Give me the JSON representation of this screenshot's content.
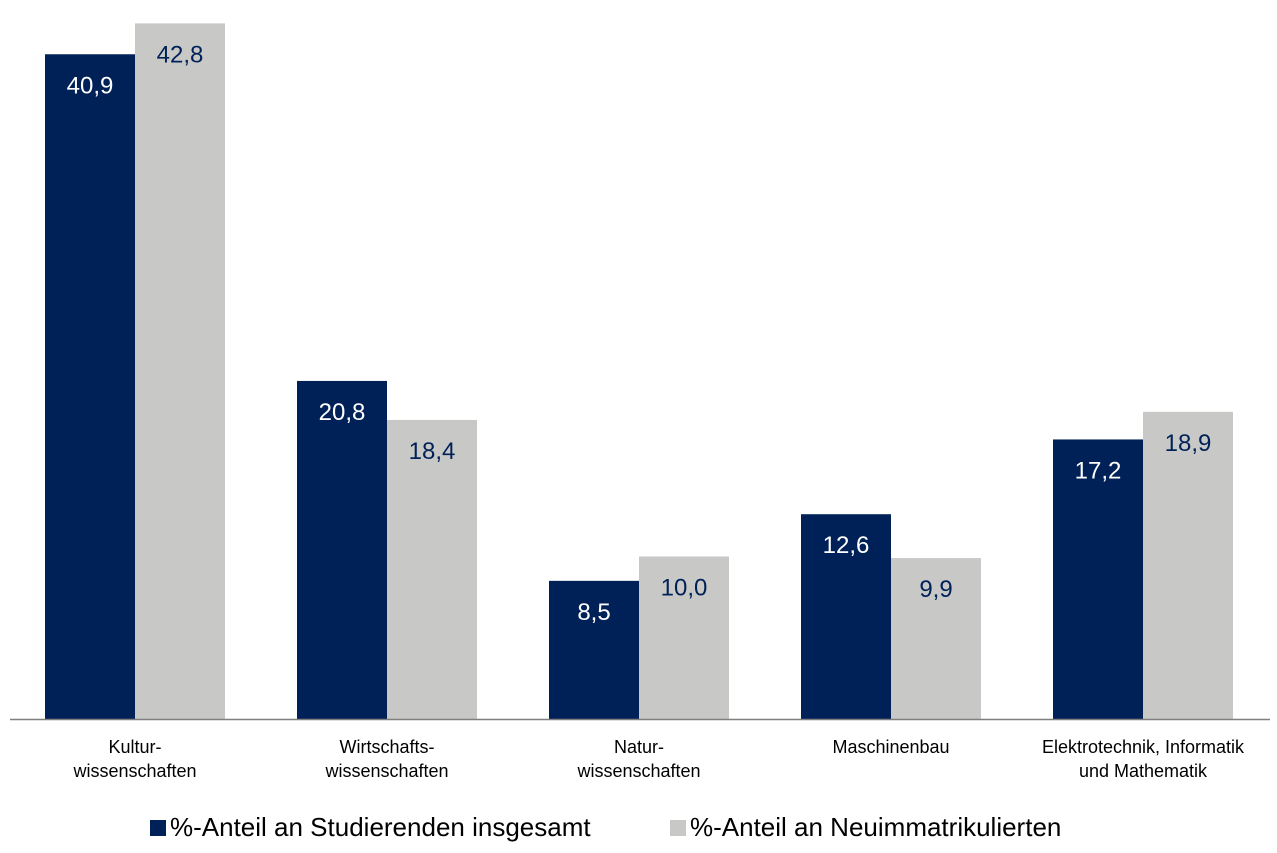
{
  "colors": {
    "series1": "#002157",
    "series2": "#c8c9c7",
    "label_on_dark": "#ffffff",
    "label_on_light": "#002157",
    "axis": "#7f7f7f"
  },
  "chart_data": {
    "type": "bar",
    "categories": [
      [
        "Kultur-",
        "wissenschaften"
      ],
      [
        "Wirtschafts-",
        "wissenschaften"
      ],
      [
        "Natur-",
        "wissenschaften"
      ],
      [
        "Maschinenbau"
      ],
      [
        "Elektrotechnik, Informatik",
        "und Mathematik"
      ]
    ],
    "series": [
      {
        "name": "%-Anteil an Studierenden insgesamt",
        "values": [
          40.9,
          20.8,
          8.5,
          12.6,
          17.2
        ],
        "labels": [
          "40,9",
          "20,8",
          "8,5",
          "12,6",
          "17,2"
        ]
      },
      {
        "name": "%-Anteil an Neuimmatrikulierten",
        "values": [
          42.8,
          18.4,
          10.0,
          9.9,
          18.9
        ],
        "labels": [
          "42,8",
          "18,4",
          "10,0",
          "9,9",
          "18,9"
        ]
      }
    ],
    "ylim": [
      0,
      43.5
    ],
    "grid": false,
    "legend_position": "bottom"
  }
}
